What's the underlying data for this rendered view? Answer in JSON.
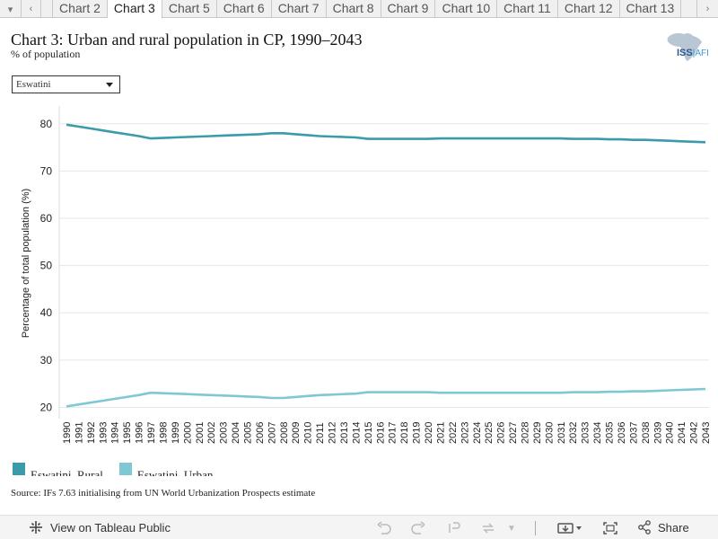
{
  "tabs": {
    "items": [
      "Chart 2",
      "Chart 3",
      "Chart 5",
      "Chart 6",
      "Chart 7",
      "Chart 8",
      "Chart 9",
      "Chart 10",
      "Chart 11",
      "Chart 12",
      "Chart 13"
    ],
    "active_index": 1
  },
  "header": {
    "title": "Chart 3: Urban and rural population in CP, 1990–2043",
    "subtitle": "% of population",
    "logo_text_main": "ISS",
    "logo_text_accent": "AFI"
  },
  "filter": {
    "selected": "Eswatini"
  },
  "chart_data": {
    "type": "line",
    "title": "Chart 3: Urban and rural population in CP, 1990–2043",
    "subtitle": "% of population",
    "ylabel": "Percentage of total population (%)",
    "xlabel": "",
    "ylim": [
      18,
      83
    ],
    "yticks": [
      20,
      30,
      40,
      50,
      60,
      70,
      80
    ],
    "x": [
      1990,
      1991,
      1992,
      1993,
      1994,
      1995,
      1996,
      1997,
      1998,
      1999,
      2000,
      2001,
      2002,
      2003,
      2004,
      2005,
      2006,
      2007,
      2008,
      2009,
      2010,
      2011,
      2012,
      2013,
      2014,
      2015,
      2016,
      2017,
      2018,
      2019,
      2020,
      2021,
      2022,
      2023,
      2024,
      2025,
      2026,
      2027,
      2028,
      2029,
      2030,
      2031,
      2032,
      2033,
      2034,
      2035,
      2036,
      2037,
      2038,
      2039,
      2040,
      2041,
      2042,
      2043
    ],
    "grid": true,
    "legend_position": "bottom-left",
    "series": [
      {
        "name": "Eswatini, Rural",
        "color": "#3a9bab",
        "values": [
          79.8,
          79.4,
          79.0,
          78.6,
          78.2,
          77.8,
          77.4,
          76.9,
          77.0,
          77.1,
          77.2,
          77.3,
          77.4,
          77.5,
          77.6,
          77.7,
          77.8,
          78.0,
          78.0,
          77.8,
          77.6,
          77.4,
          77.3,
          77.2,
          77.1,
          76.8,
          76.8,
          76.8,
          76.8,
          76.8,
          76.8,
          76.9,
          76.9,
          76.9,
          76.9,
          76.9,
          76.9,
          76.9,
          76.9,
          76.9,
          76.9,
          76.9,
          76.8,
          76.8,
          76.8,
          76.7,
          76.7,
          76.6,
          76.6,
          76.5,
          76.4,
          76.3,
          76.2,
          76.1
        ]
      },
      {
        "name": "Eswatini, Urban",
        "color": "#7ec8d4",
        "values": [
          20.2,
          20.6,
          21.0,
          21.4,
          21.8,
          22.2,
          22.6,
          23.1,
          23.0,
          22.9,
          22.8,
          22.7,
          22.6,
          22.5,
          22.4,
          22.3,
          22.2,
          22.0,
          22.0,
          22.2,
          22.4,
          22.6,
          22.7,
          22.8,
          22.9,
          23.2,
          23.2,
          23.2,
          23.2,
          23.2,
          23.2,
          23.1,
          23.1,
          23.1,
          23.1,
          23.1,
          23.1,
          23.1,
          23.1,
          23.1,
          23.1,
          23.1,
          23.2,
          23.2,
          23.2,
          23.3,
          23.3,
          23.4,
          23.4,
          23.5,
          23.6,
          23.7,
          23.8,
          23.9
        ]
      }
    ]
  },
  "source": "Source: IFs 7.63 initialising from UN World Urbanization Prospects estimate",
  "footer": {
    "view_label": "View on Tableau Public",
    "share_label": "Share"
  }
}
